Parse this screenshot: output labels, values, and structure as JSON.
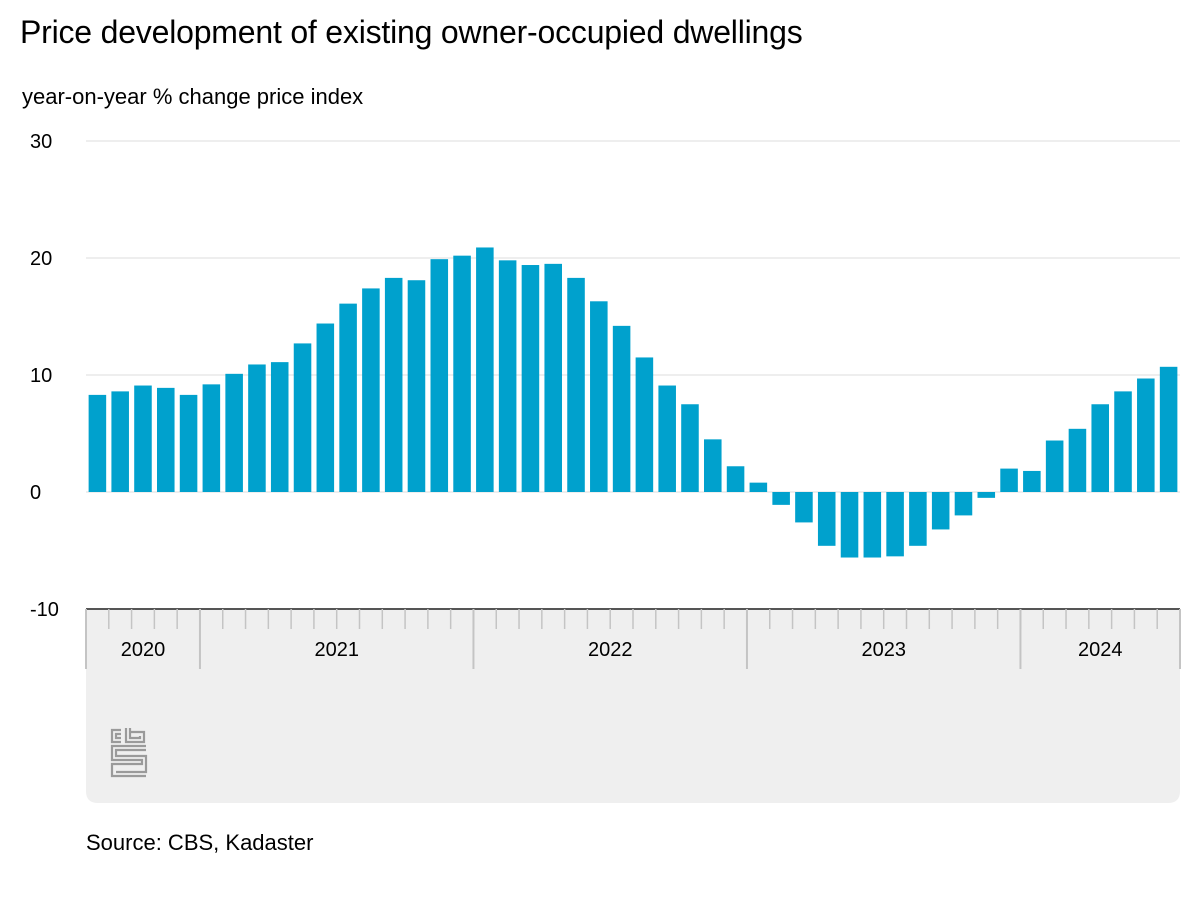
{
  "chart_data": {
    "type": "bar",
    "title": "Price development of existing owner-occupied dwellings",
    "subtitle": "year-on-year % change price index",
    "source": "Source: CBS, Kadaster",
    "ylim": [
      -10,
      30
    ],
    "yticks": [
      "30",
      "20",
      "10",
      "0",
      "-10"
    ],
    "ytick_values": [
      30,
      20,
      10,
      0,
      -10
    ],
    "grid": true,
    "bar_color": "#00a1cd",
    "years": [
      {
        "label": "2020",
        "start": 0,
        "count": 5
      },
      {
        "label": "2021",
        "start": 5,
        "count": 12
      },
      {
        "label": "2022",
        "start": 17,
        "count": 12
      },
      {
        "label": "2023",
        "start": 29,
        "count": 12
      },
      {
        "label": "2024",
        "start": 41,
        "count": 7
      }
    ],
    "series": [
      {
        "values": [
          8.3,
          8.6,
          9.1,
          8.9,
          8.3,
          9.2,
          10.1,
          10.9,
          11.1,
          12.7,
          14.4,
          16.1,
          17.4,
          18.3,
          18.1,
          19.9,
          20.2,
          20.9,
          19.8,
          19.4,
          19.5,
          18.3,
          16.3,
          14.2,
          11.5,
          9.1,
          7.5,
          4.5,
          2.2,
          0.8,
          -1.1,
          -2.6,
          -4.6,
          -5.6,
          -5.6,
          -5.5,
          -4.6,
          -3.2,
          -2.0,
          -0.5,
          2.0,
          1.8,
          4.4,
          5.4,
          7.5,
          8.6,
          9.7,
          10.7
        ]
      }
    ]
  },
  "logo": {
    "name": "cbs-logo-icon",
    "text": "cbs"
  }
}
